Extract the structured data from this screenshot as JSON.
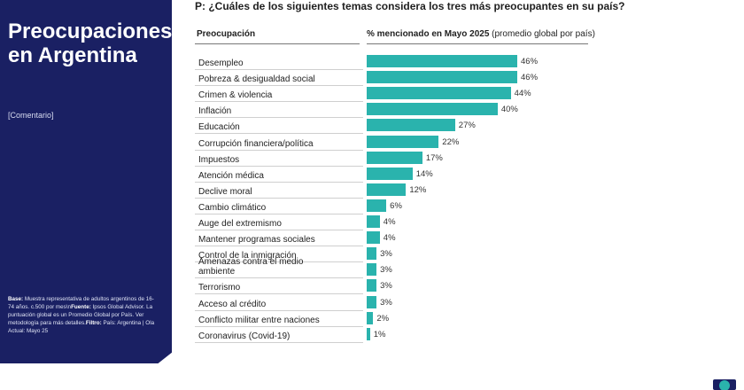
{
  "sidebar": {
    "title": "Preocupaciones en Argentina",
    "comment": "[Comentario]",
    "note_base_label": "Base:",
    "note_base_text": " Muestra representativa de adultos argentinos de 16-74 años. c.500 por mes\\n",
    "note_source_label": "Fuente:",
    "note_source_text": " Ipsos Global Advisor. La puntuación global es un Promedio Global por País. Ver metodología para más detalles.",
    "note_filter_label": "Filtro:",
    "note_filter_text": " País: Argentina | Ola Actual: Mayo 25"
  },
  "header": {
    "question": "P: ¿Cuáles de los siguientes temas considera los tres más preocupantes en su país?",
    "col_left": "Preocupación",
    "col_right_bold": "% mencionado en Mayo 2025",
    "col_right_rest": " (promedio global por país)"
  },
  "colors": {
    "bar": "#2ab3ad",
    "sidebar": "#1a2063"
  },
  "chart_data": {
    "type": "bar",
    "orientation": "horizontal",
    "title": "P: ¿Cuáles de los siguientes temas considera los tres más preocupantes en su país?",
    "xlabel": "% mencionado en Mayo 2025 (promedio global por país)",
    "ylabel": "Preocupación",
    "unit": "%",
    "categories": [
      "Desempleo",
      "Pobreza & desigualdad social",
      "Crimen & violencia",
      "Inflación",
      "Educación",
      "Corrupción financiera/política",
      "Impuestos",
      "Atención médica",
      "Declive moral",
      "Cambio climático",
      "Auge del extremismo",
      "Mantener programas sociales",
      "Control de la inmigración",
      "Amenazas contra el medio ambiente",
      "Terrorismo",
      "Acceso al crédito",
      "Conflicto militar entre naciones",
      "Coronavirus (Covid-19)"
    ],
    "values": [
      46,
      46,
      44,
      40,
      27,
      22,
      17,
      14,
      12,
      6,
      4,
      4,
      3,
      3,
      3,
      3,
      2,
      1
    ],
    "labels": [
      "46%",
      "46%",
      "44%",
      "40%",
      "27%",
      "22%",
      "17%",
      "14%",
      "12%",
      "6%",
      "4%",
      "4%",
      "3%",
      "3%",
      "3%",
      "3%",
      "2%",
      "1%"
    ]
  }
}
